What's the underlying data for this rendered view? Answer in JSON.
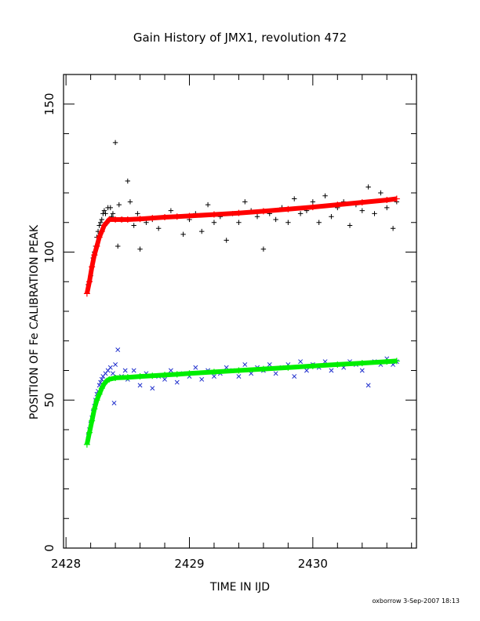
{
  "chart_data": {
    "type": "scatter",
    "title": "Gain History of JMX1, revolution 472",
    "xlabel": "TIME IN IJD",
    "ylabel": "POSITION OF Fe CALIBRATION PEAK",
    "xlim": [
      2427.98,
      2430.84
    ],
    "ylim": [
      0,
      160
    ],
    "x_ticks": [
      2428,
      2429,
      2430
    ],
    "y_ticks": [
      0,
      50,
      100,
      150
    ],
    "grid": false,
    "legend": "none",
    "series": [
      {
        "marker": "+",
        "color": "#000000",
        "x": [
          2428.18,
          2428.19,
          2428.2,
          2428.21,
          2428.22,
          2428.23,
          2428.24,
          2428.25,
          2428.26,
          2428.27,
          2428.28,
          2428.29,
          2428.3,
          2428.31,
          2428.32,
          2428.34,
          2428.36,
          2428.37,
          2428.38,
          2428.4,
          2428.42,
          2428.43,
          2428.46,
          2428.5,
          2428.52,
          2428.55,
          2428.58,
          2428.6,
          2428.65,
          2428.7,
          2428.75,
          2428.8,
          2428.85,
          2428.9,
          2428.95,
          2429.0,
          2429.05,
          2429.1,
          2429.15,
          2429.2,
          2429.25,
          2429.3,
          2429.35,
          2429.4,
          2429.45,
          2429.5,
          2429.55,
          2429.6,
          2429.65,
          2429.7,
          2429.75,
          2429.8,
          2429.85,
          2429.9,
          2429.95,
          2430.0,
          2430.05,
          2430.1,
          2430.15,
          2430.2,
          2430.25,
          2430.3,
          2430.35,
          2430.4,
          2430.45,
          2430.5,
          2430.55,
          2430.6,
          2430.65,
          2430.68
        ],
        "y": [
          89,
          90,
          92,
          95,
          98,
          100,
          102,
          105,
          107,
          109,
          110,
          111,
          113,
          114,
          113,
          115,
          115,
          112,
          113,
          137,
          102,
          116,
          111,
          124,
          117,
          109,
          113,
          101,
          110,
          111,
          108,
          112,
          114,
          112,
          106,
          111,
          113,
          107,
          116,
          110,
          112,
          104,
          113,
          110,
          117,
          114,
          112,
          101,
          113,
          111,
          115,
          110,
          118,
          113,
          114,
          117,
          110,
          119,
          112,
          115,
          117,
          109,
          116,
          114,
          122,
          113,
          120,
          115,
          108,
          117
        ]
      },
      {
        "marker": "x",
        "color": "#1e2ecc",
        "x": [
          2428.18,
          2428.19,
          2428.2,
          2428.21,
          2428.22,
          2428.23,
          2428.24,
          2428.25,
          2428.26,
          2428.27,
          2428.28,
          2428.29,
          2428.3,
          2428.32,
          2428.34,
          2428.36,
          2428.38,
          2428.39,
          2428.4,
          2428.42,
          2428.45,
          2428.48,
          2428.5,
          2428.55,
          2428.6,
          2428.65,
          2428.7,
          2428.75,
          2428.8,
          2428.85,
          2428.9,
          2428.95,
          2429.0,
          2429.05,
          2429.1,
          2429.15,
          2429.2,
          2429.25,
          2429.3,
          2429.35,
          2429.4,
          2429.45,
          2429.5,
          2429.55,
          2429.6,
          2429.65,
          2429.7,
          2429.75,
          2429.8,
          2429.85,
          2429.9,
          2429.95,
          2430.0,
          2430.05,
          2430.1,
          2430.15,
          2430.2,
          2430.25,
          2430.3,
          2430.35,
          2430.4,
          2430.45,
          2430.5,
          2430.55,
          2430.6,
          2430.65,
          2430.68
        ],
        "y": [
          38,
          40,
          42,
          44,
          46,
          48,
          50,
          52,
          53,
          55,
          56,
          57,
          58,
          59,
          60,
          61,
          59,
          49,
          62,
          67,
          58,
          60,
          57,
          60,
          55,
          59,
          54,
          58,
          57,
          60,
          56,
          59,
          58,
          61,
          57,
          60,
          58,
          59,
          61,
          60,
          58,
          62,
          59,
          61,
          60,
          62,
          59,
          61,
          62,
          58,
          63,
          60,
          62,
          61,
          63,
          60,
          62,
          61,
          63,
          62,
          60,
          55,
          63,
          62,
          64,
          62,
          63
        ]
      },
      {
        "type": "line",
        "marker": "+",
        "color": "#ff0000",
        "x": [
          2428.17,
          2428.19,
          2428.21,
          2428.23,
          2428.25,
          2428.27,
          2428.29,
          2428.31,
          2428.33,
          2428.35,
          2428.4,
          2428.45,
          2428.5,
          2428.6,
          2428.7,
          2428.8,
          2428.9,
          2429.0,
          2429.2,
          2429.4,
          2429.6,
          2429.8,
          2430.0,
          2430.2,
          2430.4,
          2430.6,
          2430.68
        ],
        "y": [
          86,
          90,
          95,
          99,
          102,
          105,
          107,
          109,
          110,
          111,
          111,
          111,
          111,
          111.2,
          111.5,
          111.8,
          112,
          112.2,
          112.7,
          113.2,
          113.8,
          114.5,
          115.2,
          116,
          116.8,
          117.6,
          118
        ]
      },
      {
        "type": "line",
        "marker": "+",
        "color": "#00ee00",
        "x": [
          2428.17,
          2428.19,
          2428.21,
          2428.23,
          2428.25,
          2428.27,
          2428.29,
          2428.31,
          2428.33,
          2428.35,
          2428.4,
          2428.5,
          2428.6,
          2428.7,
          2428.8,
          2428.9,
          2429.0,
          2429.2,
          2429.4,
          2429.6,
          2429.8,
          2430.0,
          2430.2,
          2430.4,
          2430.6,
          2430.68
        ],
        "y": [
          35,
          39,
          43,
          47,
          50,
          52,
          54,
          55.5,
          56.5,
          57,
          57.5,
          57.7,
          58,
          58.2,
          58.5,
          58.7,
          59,
          59.5,
          60,
          60.5,
          61,
          61.5,
          62,
          62.5,
          63,
          63.2
        ]
      }
    ]
  },
  "footer_text": "oxborrow  3-Sep-2007 18:13"
}
